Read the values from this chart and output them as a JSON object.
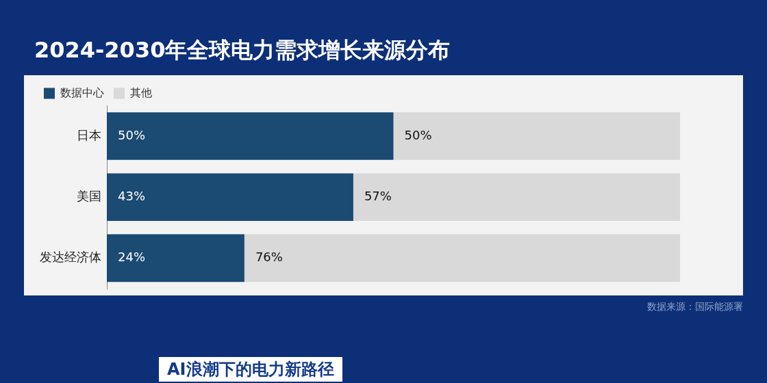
{
  "chart_data": {
    "type": "bar",
    "orientation": "horizontal",
    "stacked": true,
    "title": "2024-2030年全球电力需求增长来源分布",
    "categories": [
      "日本",
      "美国",
      "发达经济体"
    ],
    "series": [
      {
        "name": "数据中心",
        "color": "#1b4a72",
        "values": [
          50,
          43,
          24
        ],
        "value_labels": [
          "50%",
          "43%",
          "24%"
        ]
      },
      {
        "name": "其他",
        "color": "#d9d9d9",
        "values": [
          50,
          57,
          76
        ],
        "value_labels": [
          "50%",
          "57%",
          "76%"
        ]
      }
    ],
    "xlim": [
      0,
      100
    ],
    "tick_labels": "y",
    "legend": "top left",
    "annotations": [
      "数据来源：国际能源署",
      "AI浪潮下的电力新路径"
    ]
  }
}
